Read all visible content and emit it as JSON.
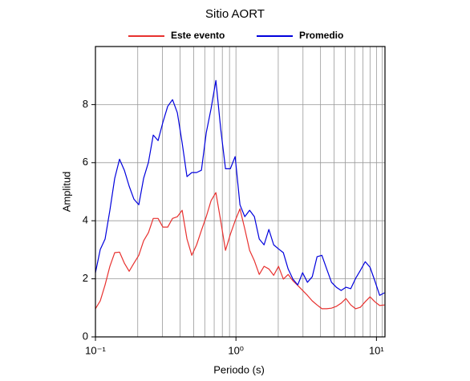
{
  "chart_data": {
    "type": "line",
    "title": "Sitio AORT",
    "x_label": "Periodo (s)",
    "y_label": "Amplitud",
    "xscale": "log",
    "grid": true,
    "legend": "top",
    "xlim": [
      0.1,
      11.5
    ],
    "ylim": [
      0,
      10
    ],
    "xticks": [
      {
        "value": 0.1,
        "label": "10⁻¹"
      },
      {
        "value": 1,
        "label": "10⁰"
      },
      {
        "value": 10,
        "label": "10¹"
      }
    ],
    "xminorticks": [
      0.2,
      0.3,
      0.4,
      0.5,
      0.6,
      0.7,
      0.8,
      0.9,
      2,
      3,
      4,
      5,
      6,
      7,
      8,
      9,
      11
    ],
    "yticks": [
      0,
      2,
      4,
      6,
      8
    ],
    "x": [
      0.1,
      0.1082,
      0.1171,
      0.1267,
      0.1371,
      0.1484,
      0.1606,
      0.1738,
      0.188,
      0.2035,
      0.2202,
      0.2383,
      0.2579,
      0.2791,
      0.302,
      0.3268,
      0.3537,
      0.3827,
      0.4141,
      0.4482,
      0.485,
      0.5248,
      0.5679,
      0.6146,
      0.6651,
      0.7197,
      0.7788,
      0.8427,
      0.912,
      0.9869,
      1.068,
      1.156,
      1.251,
      1.353,
      1.465,
      1.585,
      1.715,
      1.856,
      2.009,
      2.174,
      2.352,
      2.545,
      2.754,
      2.981,
      3.226,
      3.491,
      3.777,
      4.088,
      4.424,
      4.786,
      5.179,
      5.605,
      6.065,
      6.563,
      7.102,
      7.686,
      8.318,
      9.0,
      9.74,
      10.54,
      11.41
    ],
    "series": [
      {
        "name": "Este evento",
        "color": "#e8312f",
        "values": [
          0.97,
          1.24,
          1.79,
          2.43,
          2.9,
          2.92,
          2.54,
          2.26,
          2.54,
          2.81,
          3.31,
          3.59,
          4.08,
          4.08,
          3.78,
          3.78,
          4.08,
          4.14,
          4.36,
          3.37,
          2.81,
          3.17,
          3.67,
          4.14,
          4.69,
          4.97,
          4.0,
          2.98,
          3.53,
          4.0,
          4.41,
          3.72,
          2.98,
          2.62,
          2.15,
          2.43,
          2.34,
          2.12,
          2.43,
          1.99,
          2.15,
          1.93,
          1.77,
          1.6,
          1.43,
          1.24,
          1.1,
          0.97,
          0.97,
          0.99,
          1.05,
          1.16,
          1.32,
          1.1,
          0.97,
          1.02,
          1.21,
          1.38,
          1.21,
          1.08,
          1.1
        ]
      },
      {
        "name": "Promedio",
        "color": "#0000dd",
        "values": [
          2.21,
          3.01,
          3.37,
          4.36,
          5.46,
          6.12,
          5.74,
          5.19,
          4.74,
          4.55,
          5.46,
          6.01,
          6.95,
          6.76,
          7.39,
          7.94,
          8.17,
          7.72,
          6.68,
          5.52,
          5.66,
          5.66,
          5.74,
          7.03,
          7.86,
          8.83,
          7.17,
          5.79,
          5.79,
          6.21,
          4.55,
          4.14,
          4.36,
          4.14,
          3.37,
          3.17,
          3.7,
          3.17,
          3.03,
          2.9,
          2.34,
          1.99,
          1.79,
          2.21,
          1.88,
          2.07,
          2.76,
          2.81,
          2.34,
          1.88,
          1.71,
          1.6,
          1.71,
          1.66,
          2.01,
          2.29,
          2.59,
          2.4,
          1.93,
          1.43,
          1.52
        ]
      }
    ]
  }
}
